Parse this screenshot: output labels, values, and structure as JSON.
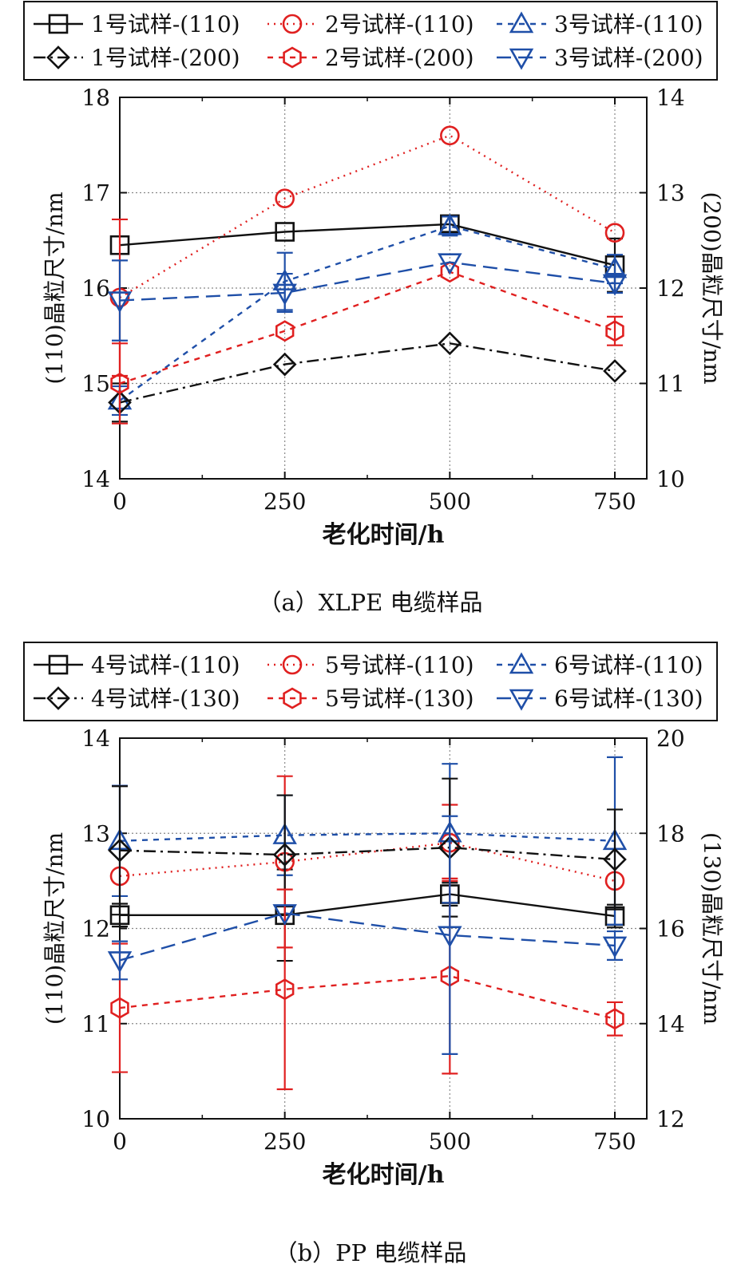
{
  "figure": {
    "panels": [
      {
        "caption": "（a）XLPE 电缆样品"
      },
      {
        "caption": "（b）PP 电缆样品"
      }
    ]
  },
  "chart_data": [
    {
      "type": "line",
      "xlabel": "老化时间/h",
      "ylabel_left": "(110)晶粒尺寸/nm",
      "ylabel_right": "(200)晶粒尺寸/nm",
      "x": [
        0,
        250,
        500,
        750
      ],
      "x_ticks": [
        "0",
        "250",
        "500",
        "750"
      ],
      "ylim_left": [
        14,
        18
      ],
      "y_ticks_left": [
        "14",
        "15",
        "16",
        "17",
        "18"
      ],
      "ylim_right": [
        10,
        14
      ],
      "y_ticks_right": [
        "10",
        "11",
        "12",
        "13",
        "14"
      ],
      "grid": true,
      "legend": {
        "placement": "top",
        "columns": 3
      },
      "series": [
        {
          "name": "1号试样-(110)",
          "axis": "left",
          "color": "#111111",
          "marker": "square",
          "dash": "solid",
          "values": [
            16.45,
            16.59,
            16.67,
            16.24
          ],
          "errors": [
            0,
            0,
            0.08,
            0.28
          ]
        },
        {
          "name": "2号试样-(110)",
          "axis": "left",
          "color": "#e02020",
          "marker": "circle",
          "dash": "dotted",
          "values": [
            15.9,
            16.94,
            17.6,
            16.58
          ],
          "errors": [
            0.82,
            0,
            0,
            0
          ]
        },
        {
          "name": "3号试样-(110)",
          "axis": "left",
          "color": "#1f4fa8",
          "marker": "triangle-up",
          "dash": "short-dash",
          "values": [
            14.82,
            16.07,
            16.65,
            16.2
          ],
          "errors": [
            0.15,
            0.3,
            0.1,
            0.15
          ]
        },
        {
          "name": "1号试样-(200)",
          "axis": "right",
          "color": "#111111",
          "marker": "diamond",
          "dash": "dash-dot",
          "values": [
            10.8,
            11.2,
            11.42,
            11.13
          ],
          "errors": [
            0.2,
            0,
            0,
            0
          ]
        },
        {
          "name": "2号试样-(200)",
          "axis": "right",
          "color": "#e02020",
          "marker": "hexagon",
          "dash": "short-dash",
          "values": [
            11.0,
            11.55,
            12.17,
            11.55
          ],
          "errors": [
            0.42,
            0,
            0,
            0.15
          ]
        },
        {
          "name": "3号试样-(200)",
          "axis": "right",
          "color": "#1f4fa8",
          "marker": "triangle-down",
          "dash": "long-dash",
          "values": [
            11.87,
            11.95,
            12.27,
            12.05
          ],
          "errors": [
            0.42,
            0.2,
            0,
            0.1
          ]
        }
      ]
    },
    {
      "type": "line",
      "xlabel": "老化时间/h",
      "ylabel_left": "(110)晶粒尺寸/nm",
      "ylabel_right": "(130)晶粒尺寸/nm",
      "x": [
        0,
        250,
        500,
        750
      ],
      "x_ticks": [
        "0",
        "250",
        "500",
        "750"
      ],
      "ylim_left": [
        10,
        14
      ],
      "y_ticks_left": [
        "10",
        "11",
        "12",
        "13",
        "14"
      ],
      "ylim_right": [
        12,
        20
      ],
      "y_ticks_right": [
        "12",
        "14",
        "16",
        "18",
        "20"
      ],
      "grid": true,
      "legend": {
        "placement": "top",
        "columns": 3
      },
      "series": [
        {
          "name": "4号试样-(110)",
          "axis": "left",
          "color": "#111111",
          "marker": "square",
          "dash": "solid",
          "values": [
            12.14,
            12.14,
            12.36,
            12.13
          ],
          "errors": [
            0.12,
            0.48,
            0.12,
            0.12
          ]
        },
        {
          "name": "5号试样-(110)",
          "axis": "left",
          "color": "#e02020",
          "marker": "circle",
          "dash": "dotted",
          "values": [
            12.55,
            12.7,
            12.9,
            12.5
          ],
          "errors": [
            0,
            0.9,
            0.4,
            0
          ]
        },
        {
          "name": "6号试样-(110)",
          "axis": "left",
          "color": "#1f4fa8",
          "marker": "triangle-up",
          "dash": "short-dash",
          "values": [
            12.92,
            12.98,
            13.0,
            12.92
          ],
          "errors": [
            0.58,
            0.42,
            0.73,
            0.88
          ]
        },
        {
          "name": "4号试样-(130)",
          "axis": "right",
          "color": "#111111",
          "marker": "diamond",
          "dash": "dash-dot",
          "values": [
            17.64,
            17.55,
            17.7,
            17.45
          ],
          "errors": [
            1.35,
            1.25,
            1.45,
            1.05
          ]
        },
        {
          "name": "5号试样-(130)",
          "axis": "right",
          "color": "#e02020",
          "marker": "hexagon",
          "dash": "short-dash",
          "values": [
            14.33,
            14.72,
            15.0,
            14.1
          ],
          "errors": [
            1.35,
            2.1,
            2.05,
            0.35
          ]
        },
        {
          "name": "6号试样-(130)",
          "axis": "right",
          "color": "#1f4fa8",
          "marker": "triangle-down",
          "dash": "long-dash",
          "values": [
            15.33,
            16.32,
            15.86,
            15.64
          ],
          "errors": [
            0.4,
            0,
            2.5,
            0.3
          ]
        }
      ]
    }
  ]
}
